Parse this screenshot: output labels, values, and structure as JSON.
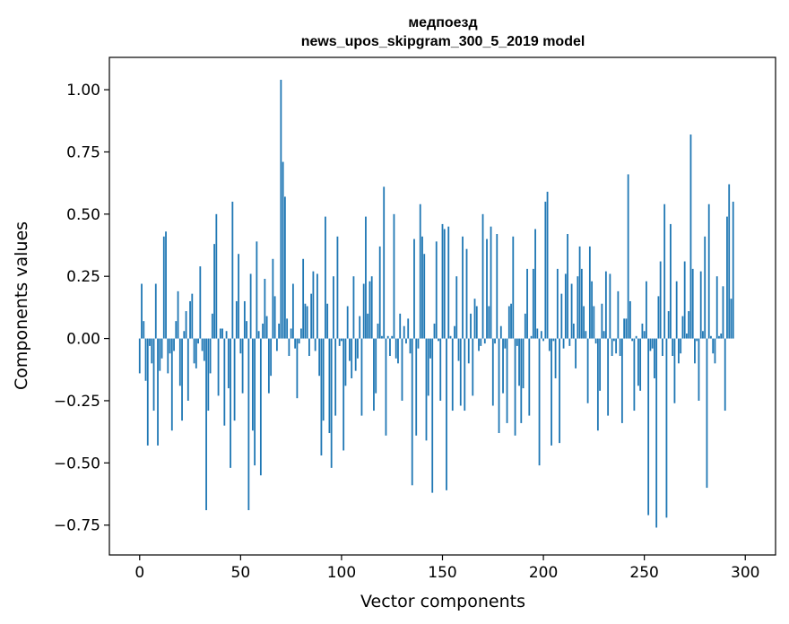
{
  "chart_data": {
    "type": "bar",
    "title": "медпоезд",
    "subtitle": "news_upos_skipgram_300_5_2019 model",
    "xlabel": "Vector components",
    "ylabel": "Components values",
    "xlim": [
      -15,
      315
    ],
    "ylim": [
      -0.87,
      1.13
    ],
    "xticks": [
      0,
      50,
      100,
      150,
      200,
      250,
      300
    ],
    "xtick_labels": [
      "0",
      "50",
      "100",
      "150",
      "200",
      "250",
      "300"
    ],
    "yticks": [
      -0.75,
      -0.5,
      -0.25,
      0.0,
      0.25,
      0.5,
      0.75,
      1.0
    ],
    "ytick_labels": [
      "−0.75",
      "−0.50",
      "−0.25",
      "0.00",
      "0.25",
      "0.50",
      "0.75",
      "1.00"
    ],
    "grid": false,
    "bar_color": "#1f77b4",
    "values": [
      -0.14,
      0.22,
      0.07,
      -0.17,
      -0.43,
      -0.03,
      -0.1,
      -0.29,
      0.22,
      -0.43,
      -0.13,
      -0.08,
      0.41,
      0.43,
      -0.14,
      -0.06,
      -0.37,
      -0.05,
      0.07,
      0.19,
      -0.19,
      -0.33,
      0.03,
      0.11,
      -0.25,
      0.15,
      0.18,
      -0.1,
      -0.12,
      -0.02,
      0.29,
      -0.05,
      -0.09,
      -0.69,
      -0.29,
      -0.14,
      0.1,
      0.38,
      0.5,
      -0.23,
      0.04,
      0.04,
      -0.35,
      0.03,
      -0.2,
      -0.52,
      0.55,
      -0.33,
      0.15,
      0.34,
      -0.06,
      -0.22,
      0.15,
      0.07,
      -0.69,
      0.26,
      -0.37,
      -0.51,
      0.39,
      0.03,
      -0.55,
      0.06,
      0.24,
      0.09,
      -0.22,
      -0.15,
      0.32,
      0.17,
      -0.05,
      0.06,
      1.04,
      0.71,
      0.57,
      0.08,
      -0.07,
      0.04,
      0.22,
      -0.04,
      -0.24,
      -0.02,
      0.04,
      0.32,
      0.14,
      0.13,
      -0.07,
      0.18,
      0.27,
      -0.05,
      0.26,
      -0.15,
      -0.47,
      -0.33,
      0.49,
      0.14,
      -0.38,
      -0.52,
      0.25,
      -0.31,
      0.41,
      -0.03,
      -0.01,
      -0.45,
      -0.19,
      0.13,
      -0.09,
      -0.16,
      0.25,
      -0.13,
      -0.08,
      0.09,
      -0.31,
      0.22,
      0.49,
      0.1,
      0.23,
      0.25,
      -0.29,
      -0.22,
      0.06,
      0.37,
      0.01,
      0.61,
      -0.39,
      0.01,
      -0.07,
      0.01,
      0.5,
      -0.08,
      -0.1,
      0.1,
      -0.25,
      0.05,
      -0.02,
      0.08,
      -0.06,
      -0.59,
      0.4,
      -0.39,
      -0.04,
      0.54,
      0.41,
      0.34,
      -0.41,
      -0.23,
      -0.08,
      -0.62,
      0.06,
      0.39,
      -0.01,
      -0.25,
      0.46,
      0.44,
      -0.61,
      0.45,
      0.01,
      -0.29,
      0.05,
      0.25,
      -0.09,
      -0.27,
      0.41,
      -0.29,
      0.36,
      -0.1,
      0.1,
      -0.23,
      0.16,
      0.13,
      -0.05,
      -0.03,
      0.5,
      -0.02,
      0.4,
      0.13,
      0.45,
      -0.27,
      -0.02,
      0.42,
      -0.38,
      0.05,
      -0.22,
      -0.04,
      -0.34,
      0.13,
      0.14,
      0.41,
      -0.39,
      -0.03,
      -0.19,
      -0.34,
      -0.2,
      0.1,
      0.28,
      -0.31,
      0.01,
      0.28,
      0.44,
      0.04,
      -0.51,
      0.03,
      -0.01,
      0.55,
      0.59,
      -0.05,
      -0.43,
      -0.01,
      -0.16,
      0.28,
      -0.42,
      0.18,
      -0.04,
      0.26,
      0.42,
      -0.03,
      0.22,
      0.06,
      -0.12,
      0.25,
      0.37,
      0.28,
      0.13,
      0.03,
      -0.26,
      0.37,
      0.23,
      0.13,
      -0.02,
      -0.37,
      -0.21,
      0.14,
      0.03,
      0.27,
      -0.31,
      0.26,
      -0.07,
      -0.01,
      -0.06,
      0.19,
      -0.07,
      -0.34,
      0.08,
      0.08,
      0.66,
      0.15,
      -0.01,
      -0.29,
      0.01,
      -0.19,
      -0.21,
      0.06,
      0.03,
      0.23,
      -0.71,
      -0.05,
      -0.04,
      -0.16,
      -0.76,
      0.17,
      0.31,
      -0.07,
      0.54,
      -0.72,
      0.11,
      0.46,
      -0.07,
      -0.26,
      0.23,
      -0.1,
      -0.06,
      0.09,
      0.31,
      0.02,
      0.11,
      0.82,
      0.28,
      -0.1,
      -0.01,
      -0.25,
      0.27,
      0.03,
      0.41,
      -0.6,
      0.54,
      0.01,
      -0.06,
      -0.1,
      0.25,
      0.01,
      0.02,
      0.21,
      -0.29,
      0.49,
      0.62,
      0.16,
      0.55
    ]
  }
}
